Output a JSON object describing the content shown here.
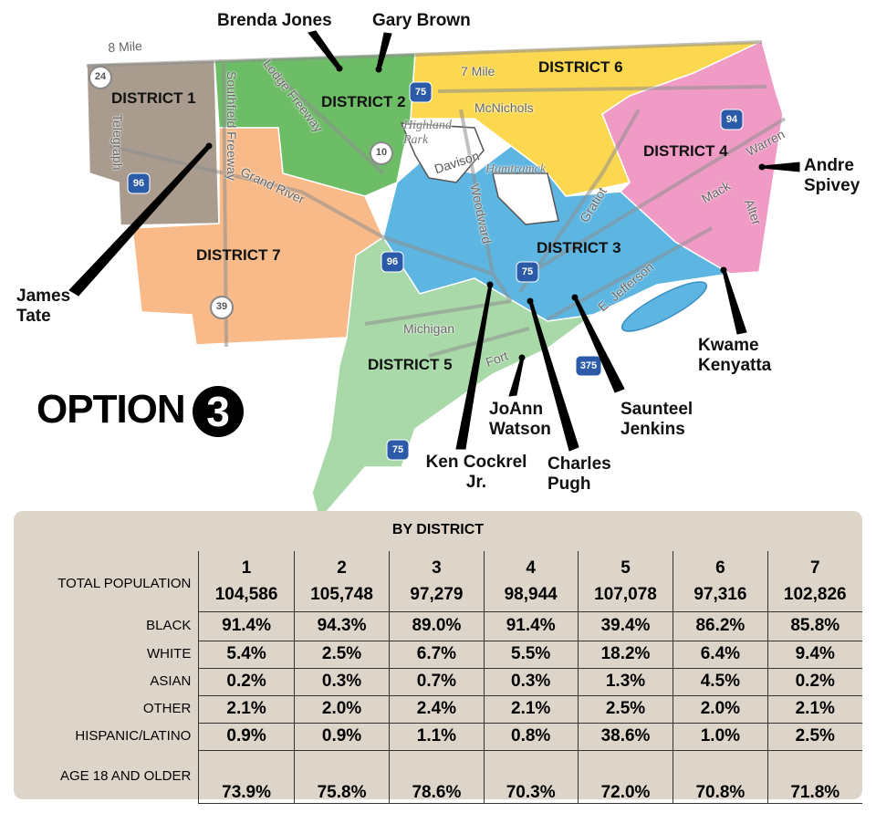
{
  "map": {
    "districts": [
      "DISTRICT 1",
      "DISTRICT 2",
      "DISTRICT 3",
      "DISTRICT 4",
      "DISTRICT 5",
      "DISTRICT 6",
      "DISTRICT 7"
    ],
    "members": [
      "Brenda Jones",
      "Gary Brown",
      "Andre Spivey",
      "James Tate",
      "Kwame Kenyatta",
      "Saunteel Jenkins",
      "JoAnn Watson",
      "Charles Pugh",
      "Ken Cockrel Jr."
    ],
    "roads": [
      "8 Mile",
      "7 Mile",
      "McNichols",
      "Lodge Freeway",
      "Southfield Freeway",
      "Telegraph",
      "Grand River",
      "Davison",
      "Woodward",
      "Gratiot",
      "Mack",
      "Warren",
      "Alter",
      "E. Jefferson",
      "Michigan",
      "Fort"
    ],
    "places": [
      "Highland Park",
      "Hamtramck"
    ],
    "shields": [
      "24",
      "10",
      "39",
      "96",
      "96",
      "75",
      "75",
      "75",
      "375",
      "94"
    ]
  },
  "title": {
    "text": "OPTION",
    "number": "3"
  },
  "table": {
    "title": "BY DISTRICT",
    "columns": [
      "1",
      "2",
      "3",
      "4",
      "5",
      "6",
      "7"
    ],
    "rows": [
      {
        "label": "TOTAL POPULATION",
        "values": [
          "104,586",
          "105,748",
          "97,279",
          "98,944",
          "107,078",
          "97,316",
          "102,826"
        ]
      },
      {
        "label": "BLACK",
        "values": [
          "91.4%",
          "94.3%",
          "89.0%",
          "91.4%",
          "39.4%",
          "86.2%",
          "85.8%"
        ]
      },
      {
        "label": "WHITE",
        "values": [
          "5.4%",
          "2.5%",
          "6.7%",
          "5.5%",
          "18.2%",
          "6.4%",
          "9.4%"
        ]
      },
      {
        "label": "ASIAN",
        "values": [
          "0.2%",
          "0.3%",
          "0.7%",
          "0.3%",
          "1.3%",
          "4.5%",
          "0.2%"
        ]
      },
      {
        "label": "OTHER",
        "values": [
          "2.1%",
          "2.0%",
          "2.4%",
          "2.1%",
          "2.5%",
          "2.0%",
          "2.1%"
        ]
      },
      {
        "label": "HISPANIC/LATINO",
        "values": [
          "0.9%",
          "0.9%",
          "1.1%",
          "0.8%",
          "38.6%",
          "1.0%",
          "2.5%"
        ]
      },
      {
        "label": "AGE 18 AND OLDER",
        "values": [
          "73.9%",
          "75.8%",
          "78.6%",
          "70.3%",
          "72.0%",
          "70.8%",
          "71.8%"
        ]
      }
    ]
  }
}
